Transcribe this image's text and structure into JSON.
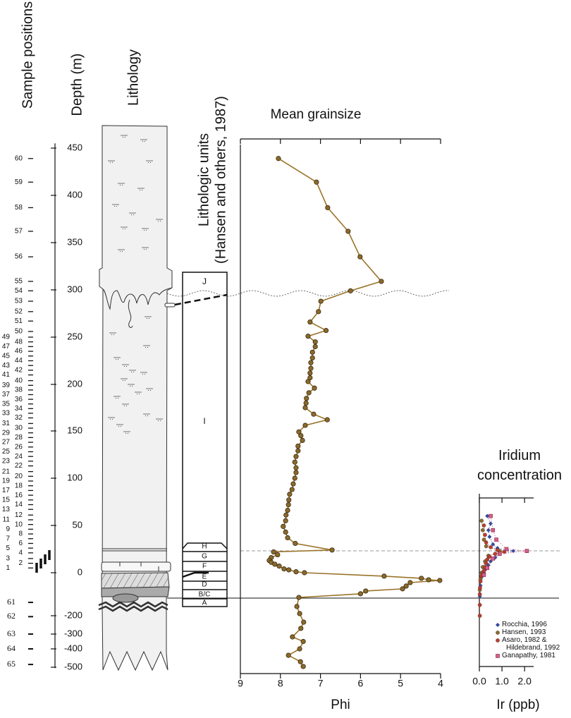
{
  "sample_positions": {
    "title": "Sample positions",
    "labels": [
      1,
      2,
      3,
      4,
      5,
      6,
      7,
      8,
      9,
      10,
      11,
      12,
      13,
      14,
      15,
      16,
      17,
      18,
      19,
      20,
      21,
      22,
      23,
      24,
      25,
      26,
      27,
      28,
      29,
      30,
      31,
      32,
      33,
      34,
      35,
      36,
      37,
      38,
      39,
      40,
      41,
      42,
      43,
      44,
      45,
      46,
      47,
      48,
      49,
      50,
      51,
      52,
      53,
      54,
      55,
      56,
      57,
      58,
      59,
      60,
      61,
      62,
      63,
      64,
      65
    ],
    "depth": [
      5,
      10,
      15,
      21,
      26,
      31,
      36,
      41,
      46,
      51,
      56,
      61,
      67,
      72,
      77,
      82,
      87,
      92,
      97,
      102,
      107,
      113,
      118,
      123,
      128,
      133,
      138,
      143,
      148,
      153,
      158,
      164,
      169,
      174,
      179,
      184,
      189,
      194,
      199,
      204,
      210,
      215,
      220,
      225,
      230,
      235,
      240,
      245,
      250,
      256,
      267,
      277,
      288,
      299,
      309,
      335,
      362,
      387,
      414,
      439,
      -138,
      -205,
      -300,
      -400,
      -485
    ]
  },
  "lithology": {
    "title": "Lithology"
  },
  "lithologic_units": {
    "title_lines": [
      "Lithologic units",
      "(Hansen and others, 1987)"
    ],
    "labels": [
      "J",
      "I",
      "H",
      "G",
      "F",
      "E",
      "D",
      "B/C",
      "A"
    ]
  },
  "chart_data": [
    {
      "type": "line",
      "title": "Mean grainsize",
      "xlabel": "Phi",
      "ylabel": "Depth (m)",
      "color": "#9a7428",
      "xlim": [
        9,
        4
      ],
      "xticks": [
        9,
        8,
        7,
        6,
        5,
        4
      ],
      "ylim": [
        -505,
        455
      ],
      "yticks": [
        450,
        400,
        350,
        300,
        250,
        200,
        150,
        100,
        50,
        0,
        -200,
        -300,
        -400,
        -500
      ],
      "depth": [
        439,
        414,
        387,
        362,
        335,
        309,
        299,
        288,
        277,
        266,
        257,
        251,
        245,
        240,
        234,
        228,
        223,
        217,
        212,
        207,
        203,
        196,
        191,
        185,
        180,
        175,
        168,
        162,
        156,
        149,
        145,
        140,
        134,
        129,
        123,
        117,
        111,
        106,
        100,
        94,
        88,
        83,
        77,
        72,
        66,
        61,
        55,
        49,
        43,
        37,
        31,
        24,
        22,
        19,
        16,
        13,
        11,
        9,
        7,
        4,
        3,
        1,
        0,
        -16,
        -26,
        -33,
        -36,
        -46,
        -62,
        -75,
        -85,
        -98,
        -115,
        -157,
        -190,
        -235,
        -269,
        -319,
        -350,
        -400,
        -435,
        -470,
        -496
      ],
      "values": [
        8.05,
        7.1,
        6.82,
        6.31,
        6.01,
        5.48,
        6.25,
        6.99,
        7.05,
        7.26,
        6.86,
        7.31,
        7.13,
        7.13,
        7.2,
        7.2,
        7.24,
        7.24,
        7.26,
        7.26,
        7.31,
        7.15,
        7.29,
        7.35,
        7.36,
        7.38,
        7.17,
        6.83,
        7.38,
        7.54,
        7.49,
        7.45,
        7.56,
        7.56,
        7.61,
        7.64,
        7.61,
        7.61,
        7.64,
        7.68,
        7.71,
        7.77,
        7.79,
        7.8,
        7.82,
        7.86,
        7.87,
        7.93,
        7.87,
        7.82,
        7.63,
        6.71,
        8.17,
        8.07,
        8.23,
        8.28,
        8.23,
        8.14,
        8.03,
        7.91,
        7.79,
        7.61,
        7.4,
        5.41,
        4.48,
        4.3,
        4.02,
        4.76,
        4.86,
        4.95,
        5.87,
        6.0,
        7.54,
        7.59,
        7.52,
        7.42,
        7.49,
        7.7,
        7.43,
        7.52,
        7.8,
        7.5,
        7.43
      ]
    },
    {
      "type": "scatter",
      "title": "Iridium concentration",
      "xlabel": "Ir (ppb)",
      "xlim": [
        0,
        2.4
      ],
      "xticks": [
        {
          "value": 0,
          "label": "0.0"
        },
        {
          "value": 1,
          "label": "1.0"
        },
        {
          "value": 2,
          "label": "2.0"
        }
      ],
      "series": [
        {
          "name": "Rocchia, 1996",
          "color": "#34489a",
          "marker": "diamond",
          "depth": [
            60,
            52,
            45,
            38,
            30,
            26,
            23,
            20,
            16,
            12,
            8,
            4,
            0,
            -20,
            -60,
            -110
          ],
          "values": [
            0.35,
            0.5,
            0.4,
            0.45,
            0.6,
            0.8,
            1.5,
            0.9,
            0.7,
            0.5,
            0.4,
            0.3,
            0.2,
            0.1,
            0.05,
            0.02
          ]
        },
        {
          "name": "Hansen, 1993",
          "color": "#8b6b2e",
          "marker": "circle",
          "depth": [
            55,
            45,
            35,
            28,
            23,
            18,
            12,
            6,
            0,
            -30,
            -80
          ],
          "values": [
            0.1,
            0.15,
            0.2,
            0.3,
            0.9,
            0.4,
            0.25,
            0.15,
            0.1,
            0.05,
            0.02
          ]
        },
        {
          "name": "Asaro, 1982 & Hildebrand, 1992",
          "color": "#c0392b",
          "marker": "circle",
          "depth": [
            50,
            40,
            32,
            27,
            24,
            22,
            20,
            17,
            14,
            10,
            6,
            2,
            -5,
            -15,
            -40,
            -70,
            -100,
            -150,
            -200
          ],
          "values": [
            0.2,
            0.25,
            0.3,
            0.5,
            0.8,
            1.1,
            0.7,
            0.45,
            0.35,
            0.3,
            0.25,
            0.2,
            0.15,
            0.1,
            0.05,
            0.03,
            0.02,
            0.02,
            0.02
          ]
        },
        {
          "name": "Ganapathy, 1981",
          "color": "#d4608a",
          "marker": "square",
          "depth": [
            60,
            45,
            35,
            25,
            23,
            20,
            15,
            5,
            -10
          ],
          "values": [
            0.5,
            0.6,
            0.75,
            1.2,
            2.1,
            0.9,
            0.6,
            0.35,
            0.2
          ]
        }
      ]
    }
  ]
}
